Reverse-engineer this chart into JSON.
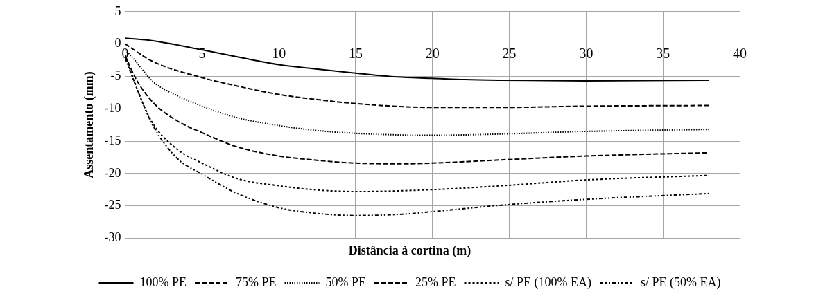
{
  "chart_data": {
    "type": "line",
    "xlabel": "Distância à cortina (m)",
    "ylabel": "Assentamento (mm)",
    "xlim": [
      0,
      40
    ],
    "xticks": [
      0,
      5,
      10,
      15,
      20,
      25,
      30,
      35,
      40
    ],
    "ylim": [
      -30,
      5
    ],
    "yticks": [
      -30,
      -25,
      -20,
      -15,
      -10,
      -5,
      0,
      5
    ],
    "grid": true,
    "legend": "bottom",
    "marker": "none",
    "series": [
      {
        "name": "100% PE",
        "color": "#000000",
        "line_style": "solid",
        "x": [
          0,
          1.8,
          5,
          7.3,
          10,
          12.2,
          15,
          17.7,
          20,
          22.1,
          24.5,
          30,
          38
        ],
        "values": [
          0.9,
          0.5,
          -0.9,
          -2.0,
          -3.2,
          -3.8,
          -4.5,
          -5.1,
          -5.3,
          -5.5,
          -5.6,
          -5.7,
          -5.6
        ]
      },
      {
        "name": "75% PE",
        "color": "#000000",
        "line_style": "dashed",
        "x": [
          0,
          1.8,
          5,
          7.3,
          10,
          12.2,
          15,
          20,
          24.5,
          30,
          38
        ],
        "values": [
          0,
          -2.7,
          -5.2,
          -6.5,
          -7.8,
          -8.5,
          -9.2,
          -9.8,
          -9.8,
          -9.6,
          -9.5
        ]
      },
      {
        "name": "50% PE",
        "color": "#000000",
        "line_style": "dotted",
        "x": [
          0,
          0.55,
          1.8,
          3.4,
          5,
          7.3,
          10,
          12.2,
          15,
          20,
          24.5,
          30,
          38
        ],
        "values": [
          -0.9,
          -2.3,
          -5.8,
          -8.0,
          -9.6,
          -11.4,
          -12.6,
          -13.3,
          -13.8,
          -14.1,
          -13.9,
          -13.5,
          -13.2
        ]
      },
      {
        "name": "25% PE",
        "color": "#000000",
        "line_style": "dashed",
        "x": [
          0,
          0.7,
          1.8,
          3.4,
          5,
          7.3,
          10,
          12.2,
          15,
          18,
          20,
          24.5,
          30,
          38
        ],
        "values": [
          -1.8,
          -5.4,
          -9.0,
          -11.9,
          -13.7,
          -15.9,
          -17.3,
          -17.9,
          -18.4,
          -18.5,
          -18.4,
          -17.9,
          -17.3,
          -16.8
        ]
      },
      {
        "name": "s/ PE (100% EA)",
        "color": "#000000",
        "line_style": "dashed",
        "x": [
          0,
          0.7,
          1.7,
          3.4,
          5,
          7.3,
          10,
          12.2,
          15,
          20,
          24.5,
          30,
          38
        ],
        "values": [
          -1.8,
          -6.5,
          -11.9,
          -16.3,
          -18.4,
          -20.8,
          -21.9,
          -22.5,
          -22.8,
          -22.5,
          -21.9,
          -21.0,
          -20.3
        ]
      },
      {
        "name": "s/ PE (50% EA)",
        "color": "#000000",
        "line_style": "dashed",
        "x": [
          0,
          1,
          1.8,
          3.4,
          5,
          7.3,
          10,
          12.2,
          15,
          18,
          20,
          24.5,
          30,
          38
        ],
        "values": [
          -2.2,
          -8.3,
          -12.6,
          -17.7,
          -20.1,
          -23.1,
          -25.3,
          -26.1,
          -26.5,
          -26.3,
          -25.9,
          -24.9,
          -24.0,
          -23.1
        ]
      }
    ]
  }
}
